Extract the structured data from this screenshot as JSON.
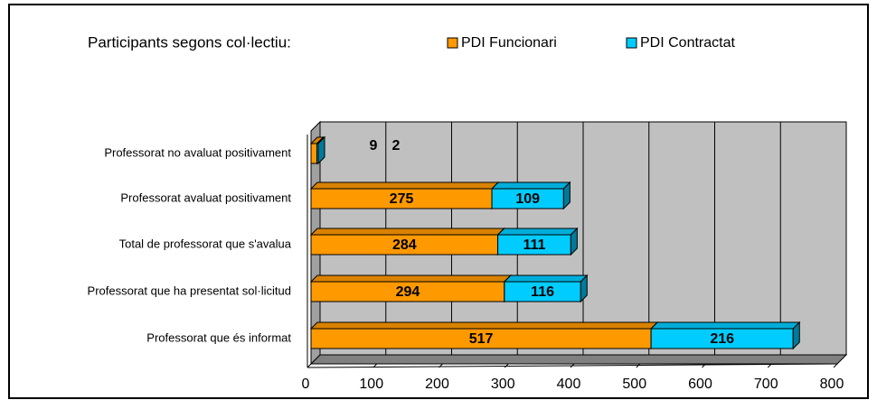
{
  "chart_data": {
    "type": "bar",
    "orientation": "horizontal",
    "stacked": true,
    "title": "Participants segons col·lectiu:",
    "categories": [
      "Professorat no avaluat positivament",
      "Professorat avaluat positivament",
      "Total de professorat que s'avalua",
      "Professorat que ha presentat sol·licitud",
      "Professorat que és informat"
    ],
    "series": [
      {
        "name": "PDI Funcionari",
        "color": "#ff9900",
        "values": [
          9,
          275,
          284,
          294,
          517
        ]
      },
      {
        "name": "PDI Contractat",
        "color": "#00ccff",
        "values": [
          2,
          109,
          111,
          116,
          216
        ]
      }
    ],
    "xlim": [
      0,
      800
    ],
    "xticks": [
      0,
      100,
      200,
      300,
      400,
      500,
      600,
      700,
      800
    ],
    "grid": true,
    "legend": "top"
  }
}
